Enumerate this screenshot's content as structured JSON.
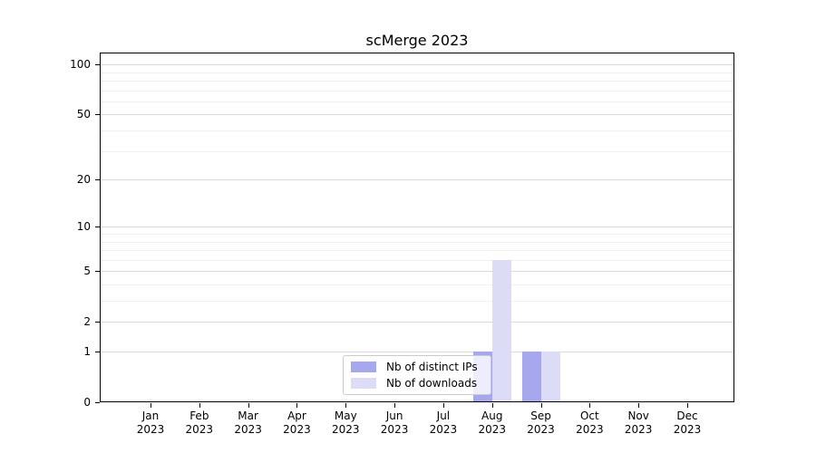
{
  "chart_data": {
    "type": "bar",
    "title": "scMerge 2023",
    "year": "2023",
    "categories": [
      "Jan",
      "Feb",
      "Mar",
      "Apr",
      "May",
      "Jun",
      "Jul",
      "Aug",
      "Sep",
      "Oct",
      "Nov",
      "Dec"
    ],
    "series": [
      {
        "name": "Nb of distinct IPs",
        "color": "#a7a7ee",
        "values": [
          0,
          0,
          0,
          0,
          0,
          0,
          0,
          1,
          1,
          0,
          0,
          0
        ]
      },
      {
        "name": "Nb of downloads",
        "color": "#dcdcf7",
        "values": [
          0,
          0,
          0,
          0,
          0,
          0,
          0,
          6,
          1,
          0,
          0,
          0
        ]
      }
    ],
    "y_axis": {
      "scale": "log1p",
      "major_ticks": [
        0,
        1,
        2,
        5,
        10,
        20,
        50,
        100
      ],
      "tick_labels": [
        "0",
        "1",
        "2",
        "5",
        "10",
        "20",
        "50",
        "100"
      ],
      "minor_gridlines": [
        3,
        4,
        6,
        7,
        8,
        9,
        30,
        40,
        60,
        70,
        80,
        90
      ],
      "max": 118
    },
    "x_axis": {
      "label_line2": "2023"
    },
    "legend": {
      "position": "lower-center"
    },
    "grid": true
  }
}
